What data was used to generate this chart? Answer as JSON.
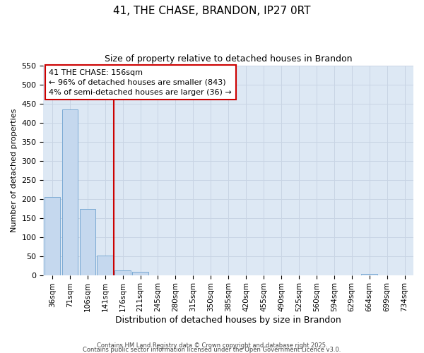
{
  "title": "41, THE CHASE, BRANDON, IP27 0RT",
  "subtitle": "Size of property relative to detached houses in Brandon",
  "xlabel": "Distribution of detached houses by size in Brandon",
  "ylabel": "Number of detached properties",
  "bin_labels": [
    "36sqm",
    "71sqm",
    "106sqm",
    "141sqm",
    "176sqm",
    "211sqm",
    "245sqm",
    "280sqm",
    "315sqm",
    "350sqm",
    "385sqm",
    "420sqm",
    "455sqm",
    "490sqm",
    "525sqm",
    "560sqm",
    "594sqm",
    "629sqm",
    "664sqm",
    "699sqm",
    "734sqm"
  ],
  "bar_values": [
    205,
    435,
    173,
    52,
    13,
    8,
    0,
    0,
    0,
    0,
    0,
    0,
    0,
    0,
    0,
    0,
    0,
    0,
    3,
    0,
    0
  ],
  "bar_color": "#c5d8ee",
  "bar_edge_color": "#7baad4",
  "grid_color": "#c8d4e4",
  "bg_color": "#dde8f4",
  "red_line_x": 3.5,
  "ylim_max": 550,
  "yticks": [
    0,
    50,
    100,
    150,
    200,
    250,
    300,
    350,
    400,
    450,
    500,
    550
  ],
  "annotation_line1": "41 THE CHASE: 156sqm",
  "annotation_line2": "← 96% of detached houses are smaller (843)",
  "annotation_line3": "4% of semi-detached houses are larger (36) →",
  "ann_box_color": "#cc0000",
  "footer1": "Contains HM Land Registry data © Crown copyright and database right 2025.",
  "footer2": "Contains public sector information licensed under the Open Government Licence v3.0."
}
